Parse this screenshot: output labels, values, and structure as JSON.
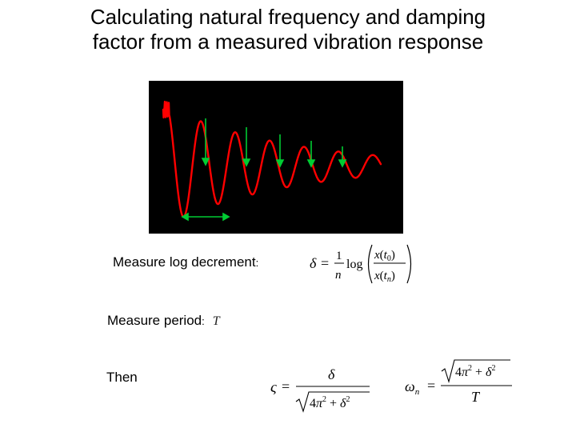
{
  "title": {
    "line1": "Calculating natural frequency and damping",
    "line2": "factor from a measured vibration response"
  },
  "colors": {
    "background": "#ffffff",
    "plot_background": "#000000",
    "signal": "#ff0000",
    "arrows": "#00cc33"
  },
  "labels": {
    "log_decrement": "Measure log decrement",
    "log_decrement_colon": ":",
    "period": "Measure period",
    "period_colon": ":",
    "period_symbol": "T",
    "then": "Then"
  },
  "formulas": {
    "log_decrement": "δ = (1/n) log( x(t0) / x(tn) )",
    "damping_factor": "ς = δ / √(4π² + δ²)",
    "natural_frequency": "ωn = √(4π² + δ²) / T"
  }
}
